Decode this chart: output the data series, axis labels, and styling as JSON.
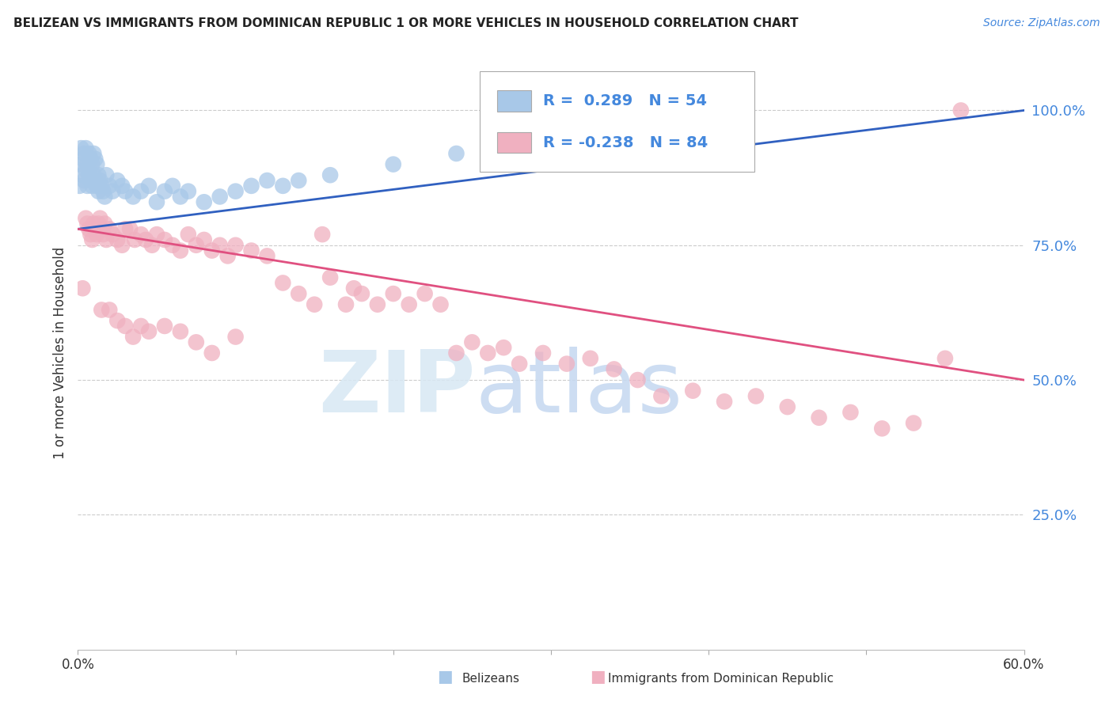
{
  "title": "BELIZEAN VS IMMIGRANTS FROM DOMINICAN REPUBLIC 1 OR MORE VEHICLES IN HOUSEHOLD CORRELATION CHART",
  "source": "Source: ZipAtlas.com",
  "ylabel": "1 or more Vehicles in Household",
  "xlim": [
    0.0,
    0.6
  ],
  "ylim": [
    0.0,
    1.1
  ],
  "blue_R": 0.289,
  "blue_N": 54,
  "pink_R": -0.238,
  "pink_N": 84,
  "blue_color": "#a8c8e8",
  "pink_color": "#f0b0c0",
  "blue_line_color": "#3060c0",
  "pink_line_color": "#e05080",
  "blue_line_x0": 0.0,
  "blue_line_y0": 0.78,
  "blue_line_x1": 0.6,
  "blue_line_y1": 1.0,
  "pink_line_x0": 0.0,
  "pink_line_y0": 0.78,
  "pink_line_x1": 0.6,
  "pink_line_y1": 0.5,
  "blue_scatter_x": [
    0.001,
    0.002,
    0.002,
    0.003,
    0.003,
    0.004,
    0.004,
    0.005,
    0.005,
    0.006,
    0.006,
    0.007,
    0.007,
    0.008,
    0.008,
    0.009,
    0.009,
    0.01,
    0.01,
    0.011,
    0.011,
    0.012,
    0.012,
    0.013,
    0.013,
    0.014,
    0.015,
    0.016,
    0.017,
    0.018,
    0.02,
    0.022,
    0.025,
    0.028,
    0.03,
    0.035,
    0.04,
    0.045,
    0.05,
    0.055,
    0.06,
    0.065,
    0.07,
    0.08,
    0.09,
    0.1,
    0.11,
    0.12,
    0.13,
    0.14,
    0.16,
    0.2,
    0.24,
    0.28
  ],
  "blue_scatter_y": [
    0.86,
    0.9,
    0.93,
    0.88,
    0.91,
    0.87,
    0.92,
    0.89,
    0.93,
    0.86,
    0.9,
    0.88,
    0.92,
    0.87,
    0.91,
    0.86,
    0.9,
    0.88,
    0.92,
    0.87,
    0.91,
    0.86,
    0.9,
    0.88,
    0.85,
    0.87,
    0.86,
    0.85,
    0.84,
    0.88,
    0.86,
    0.85,
    0.87,
    0.86,
    0.85,
    0.84,
    0.85,
    0.86,
    0.83,
    0.85,
    0.86,
    0.84,
    0.85,
    0.83,
    0.84,
    0.85,
    0.86,
    0.87,
    0.86,
    0.87,
    0.88,
    0.9,
    0.92,
    0.94
  ],
  "pink_scatter_x": [
    0.003,
    0.005,
    0.006,
    0.007,
    0.008,
    0.009,
    0.01,
    0.011,
    0.012,
    0.013,
    0.014,
    0.015,
    0.016,
    0.017,
    0.018,
    0.02,
    0.022,
    0.025,
    0.028,
    0.03,
    0.033,
    0.036,
    0.04,
    0.043,
    0.047,
    0.05,
    0.055,
    0.06,
    0.065,
    0.07,
    0.075,
    0.08,
    0.085,
    0.09,
    0.095,
    0.1,
    0.11,
    0.12,
    0.13,
    0.14,
    0.15,
    0.155,
    0.16,
    0.17,
    0.175,
    0.18,
    0.19,
    0.2,
    0.21,
    0.22,
    0.23,
    0.24,
    0.25,
    0.26,
    0.27,
    0.28,
    0.295,
    0.31,
    0.325,
    0.34,
    0.355,
    0.37,
    0.39,
    0.41,
    0.43,
    0.45,
    0.47,
    0.49,
    0.51,
    0.53,
    0.015,
    0.02,
    0.025,
    0.55,
    0.03,
    0.035,
    0.04,
    0.045,
    0.055,
    0.065,
    0.075,
    0.085,
    0.1,
    0.56
  ],
  "pink_scatter_y": [
    0.67,
    0.8,
    0.79,
    0.78,
    0.77,
    0.76,
    0.79,
    0.78,
    0.77,
    0.79,
    0.8,
    0.78,
    0.77,
    0.79,
    0.76,
    0.78,
    0.77,
    0.76,
    0.75,
    0.78,
    0.78,
    0.76,
    0.77,
    0.76,
    0.75,
    0.77,
    0.76,
    0.75,
    0.74,
    0.77,
    0.75,
    0.76,
    0.74,
    0.75,
    0.73,
    0.75,
    0.74,
    0.73,
    0.68,
    0.66,
    0.64,
    0.77,
    0.69,
    0.64,
    0.67,
    0.66,
    0.64,
    0.66,
    0.64,
    0.66,
    0.64,
    0.55,
    0.57,
    0.55,
    0.56,
    0.53,
    0.55,
    0.53,
    0.54,
    0.52,
    0.5,
    0.47,
    0.48,
    0.46,
    0.47,
    0.45,
    0.43,
    0.44,
    0.41,
    0.42,
    0.63,
    0.63,
    0.61,
    0.54,
    0.6,
    0.58,
    0.6,
    0.59,
    0.6,
    0.59,
    0.57,
    0.55,
    0.58,
    1.0
  ]
}
